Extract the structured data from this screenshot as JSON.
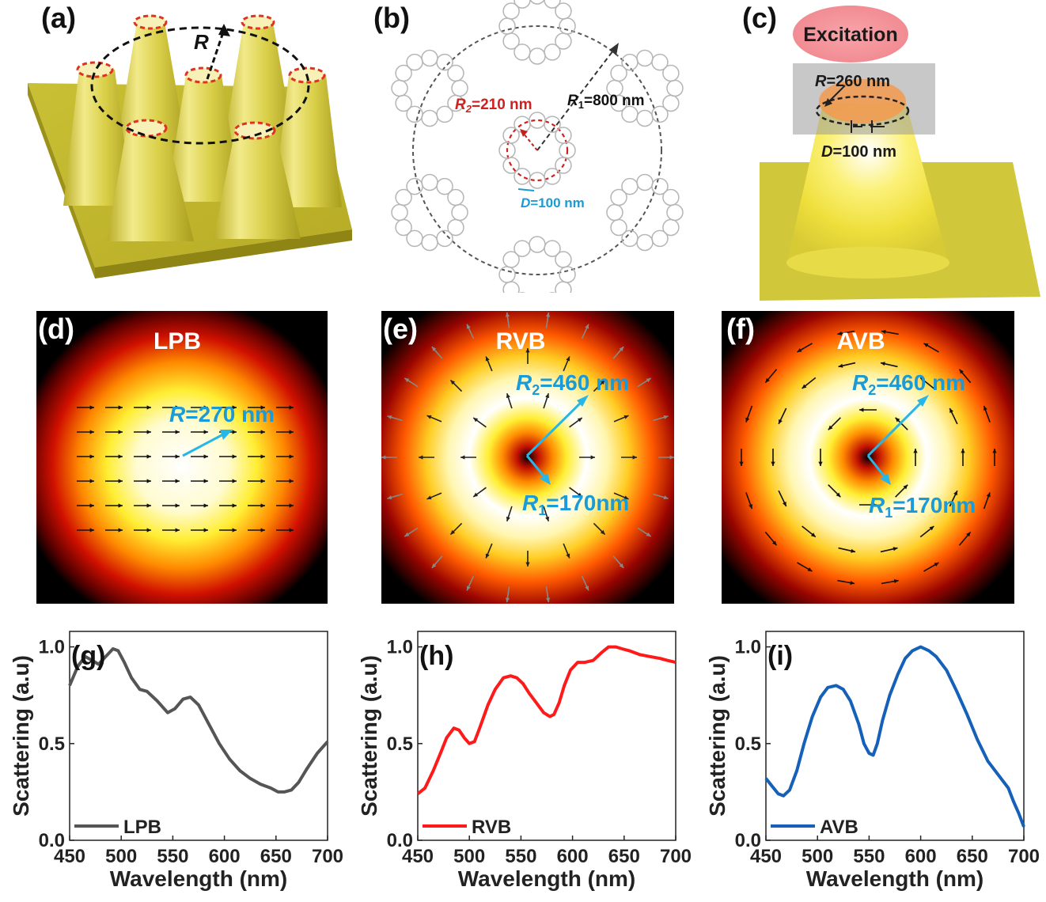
{
  "panels": {
    "a": {
      "label": "(a)",
      "radius_label": "R"
    },
    "b": {
      "label": "(b)",
      "r2_sym": "R",
      "r2_sub": "2",
      "r2_val": "=210 nm",
      "r1_sym": "R",
      "r1_sub": "1",
      "r1_val": "=800 nm",
      "d_sym": "D",
      "d_val": "=100 nm"
    },
    "c": {
      "label": "(c)",
      "excitation": "Excitation",
      "r_sym": "R",
      "r_val": "=260 nm",
      "d_sym": "D",
      "d_val": "=100 nm"
    },
    "d": {
      "label": "(d)",
      "mode": "LPB",
      "r_sym": "R",
      "r_val": "=270 nm"
    },
    "e": {
      "label": "(e)",
      "mode": "RVB",
      "r2_sym": "R",
      "r2_sub": "2",
      "r2_val": "=460 nm",
      "r1_sym": "R",
      "r1_sub": "1",
      "r1_val": "=170nm"
    },
    "f": {
      "label": "(f)",
      "mode": "AVB",
      "r2_sym": "R",
      "r2_sub": "2",
      "r2_val": "=460 nm",
      "r1_sym": "R",
      "r1_sub": "1",
      "r1_val": "=170nm"
    }
  },
  "colors": {
    "gold": "#d8cf45",
    "gold_dark": "#a59a1d",
    "red_ring": "#e02020",
    "blue_text": "#1a9ad6",
    "cyan_arrow": "#26b6e8",
    "lpb": "#555555",
    "rvb": "#ff1a1a",
    "avb": "#1560b8"
  },
  "chart_data": [
    {
      "type": "line",
      "panel_label": "(g)",
      "xlabel": "Wavelength (nm)",
      "ylabel": "Scattering (a.u)",
      "xlim": [
        450,
        700
      ],
      "ylim": [
        0,
        1.08
      ],
      "xticks": [
        450,
        500,
        550,
        600,
        650,
        700
      ],
      "yticks": [
        0.0,
        0.5,
        1.0
      ],
      "ytick_labels": [
        "0.0",
        "0.5",
        "1.0"
      ],
      "legend": "bottom-left",
      "series": [
        {
          "name": "LPB",
          "color": "#555555",
          "x": [
            450,
            458,
            465,
            472,
            478,
            485,
            492,
            497,
            503,
            510,
            518,
            525,
            535,
            545,
            552,
            560,
            567,
            575,
            585,
            595,
            605,
            615,
            625,
            635,
            645,
            652,
            658,
            665,
            672,
            680,
            690,
            700
          ],
          "y": [
            0.8,
            0.9,
            0.95,
            0.93,
            0.91,
            0.95,
            0.99,
            0.98,
            0.92,
            0.84,
            0.78,
            0.77,
            0.72,
            0.66,
            0.68,
            0.73,
            0.74,
            0.7,
            0.6,
            0.5,
            0.42,
            0.36,
            0.32,
            0.29,
            0.27,
            0.25,
            0.25,
            0.26,
            0.3,
            0.37,
            0.45,
            0.51
          ]
        }
      ]
    },
    {
      "type": "line",
      "panel_label": "(h)",
      "xlabel": "Wavelength (nm)",
      "ylabel": "Scattering (a.u)",
      "xlim": [
        450,
        700
      ],
      "ylim": [
        0,
        1.08
      ],
      "xticks": [
        450,
        500,
        550,
        600,
        650,
        700
      ],
      "yticks": [
        0.0,
        0.5,
        1.0
      ],
      "ytick_labels": [
        "0.0",
        "0.5",
        "1.0"
      ],
      "legend": "bottom-left",
      "series": [
        {
          "name": "RVB",
          "color": "#ff1a1a",
          "x": [
            450,
            457,
            465,
            472,
            478,
            485,
            490,
            495,
            500,
            505,
            510,
            518,
            525,
            533,
            540,
            546,
            552,
            558,
            565,
            572,
            578,
            582,
            587,
            592,
            598,
            605,
            612,
            620,
            628,
            635,
            642,
            648,
            655,
            665,
            675,
            685,
            692,
            700
          ],
          "y": [
            0.24,
            0.27,
            0.36,
            0.45,
            0.53,
            0.58,
            0.57,
            0.53,
            0.5,
            0.51,
            0.58,
            0.7,
            0.78,
            0.84,
            0.85,
            0.84,
            0.81,
            0.76,
            0.71,
            0.66,
            0.64,
            0.65,
            0.71,
            0.8,
            0.88,
            0.92,
            0.92,
            0.93,
            0.97,
            1.0,
            1.0,
            0.99,
            0.98,
            0.96,
            0.95,
            0.94,
            0.93,
            0.92
          ]
        }
      ]
    },
    {
      "type": "line",
      "panel_label": "(i)",
      "xlabel": "Wavelength (nm)",
      "ylabel": "Scattering (a.u)",
      "xlim": [
        450,
        700
      ],
      "ylim": [
        0,
        1.08
      ],
      "xticks": [
        450,
        500,
        550,
        600,
        650,
        700
      ],
      "yticks": [
        0.0,
        0.5,
        1.0
      ],
      "ytick_labels": [
        "0.0",
        "0.5",
        "1.0"
      ],
      "legend": "bottom-left",
      "series": [
        {
          "name": "AVB",
          "color": "#1560b8",
          "x": [
            450,
            456,
            462,
            467,
            473,
            480,
            487,
            495,
            503,
            510,
            518,
            525,
            532,
            540,
            545,
            550,
            554,
            558,
            563,
            570,
            578,
            585,
            592,
            600,
            608,
            615,
            625,
            635,
            645,
            655,
            665,
            675,
            685,
            690,
            695,
            700
          ],
          "y": [
            0.32,
            0.28,
            0.24,
            0.23,
            0.26,
            0.36,
            0.5,
            0.64,
            0.74,
            0.79,
            0.8,
            0.78,
            0.72,
            0.6,
            0.5,
            0.45,
            0.44,
            0.5,
            0.62,
            0.75,
            0.86,
            0.94,
            0.98,
            1.0,
            0.98,
            0.95,
            0.88,
            0.77,
            0.65,
            0.52,
            0.41,
            0.34,
            0.27,
            0.2,
            0.14,
            0.07
          ]
        }
      ]
    }
  ]
}
